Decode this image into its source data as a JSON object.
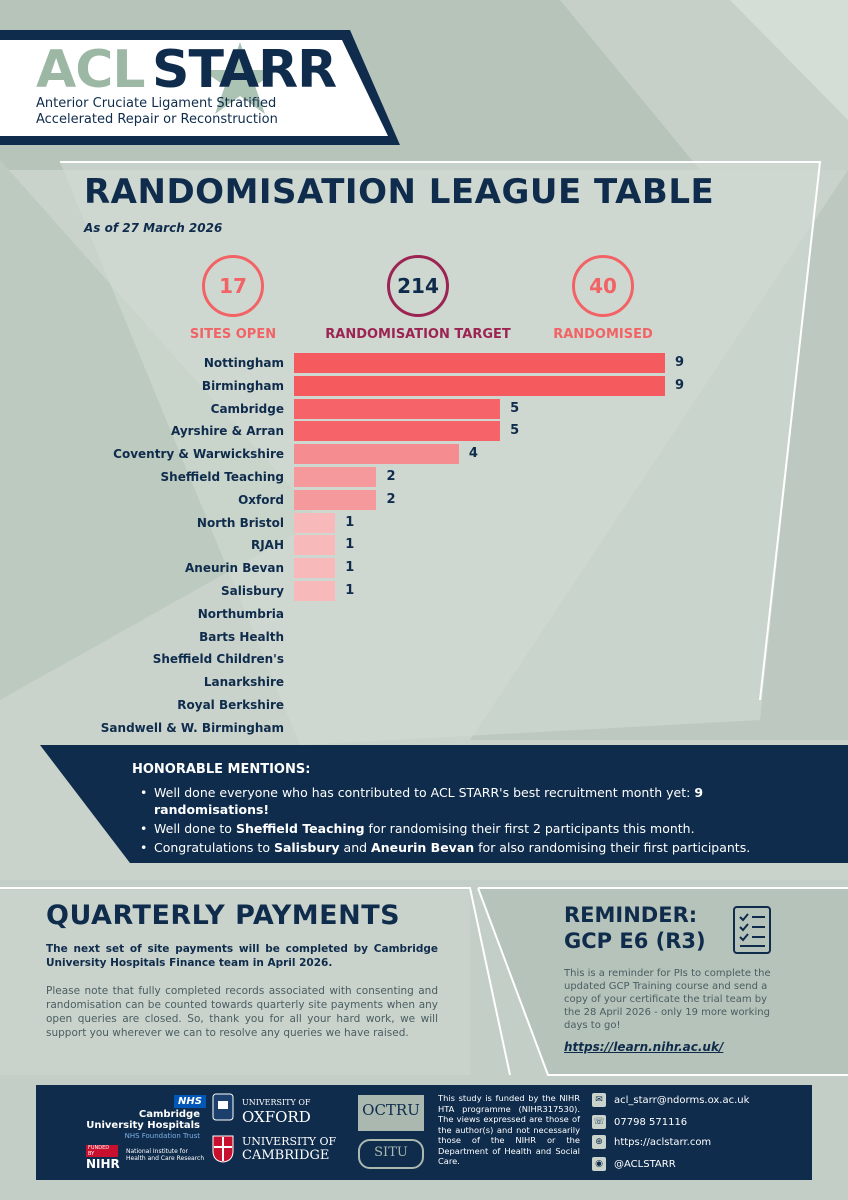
{
  "header": {
    "logo_acl": "ACL",
    "logo_starr": "STARR",
    "subtitle_line1": "Anterior Cruciate Ligament Stratified",
    "subtitle_line2": "Accelerated Repair or Reconstruction"
  },
  "title": "RANDOMISATION LEAGUE TABLE",
  "as_of": "As of 27 March 2026",
  "stats": [
    {
      "value": "17",
      "label": "SITES OPEN"
    },
    {
      "value": "214",
      "label": "RANDOMISATION TARGET"
    },
    {
      "value": "40",
      "label": "RANDOMISED"
    }
  ],
  "colors": {
    "navy": "#0f2c4c",
    "sage": "#9cb8a5",
    "coral": "#f26366",
    "magenta": "#9c2453"
  },
  "chart_data": {
    "type": "bar",
    "orientation": "horizontal",
    "categories": [
      "Nottingham",
      "Birmingham",
      "Cambridge",
      "Ayrshire & Arran",
      "Coventry & Warwickshire",
      "Sheffield Teaching",
      "Oxford",
      "North Bristol",
      "RJAH",
      "Aneurin Bevan",
      "Salisbury",
      "Northumbria",
      "Barts Health",
      "Sheffield Children's",
      "Lanarkshire",
      "Royal Berkshire",
      "Sandwell & W. Birmingham"
    ],
    "values": [
      9,
      9,
      5,
      5,
      4,
      2,
      2,
      1,
      1,
      1,
      1,
      0,
      0,
      0,
      0,
      0,
      0
    ],
    "labels": [
      "9",
      "9",
      "5",
      "5",
      "4",
      "2",
      "2",
      "1",
      "1",
      "1",
      "1",
      "",
      "",
      "",
      "",
      "",
      ""
    ],
    "bar_colors": {
      "9": "#f55a5f",
      "5": "#f6646a",
      "4": "#f58c90",
      "2": "#f6999c",
      "1": "#f8b9bb"
    },
    "xlim": [
      0,
      9
    ]
  },
  "honorable": {
    "title": "HONORABLE MENTIONS:",
    "item1_text": "Well done everyone who has contributed to ACL STARR's best recruitment month yet:",
    "item1_bold": "9 randomisations!",
    "item2_pre": "Well done to ",
    "item2_bold": "Sheffield Teaching",
    "item2_post": " for randomising their first 2 participants this month.",
    "item3_pre": "Congratulations to ",
    "item3_bold1": "Salisbury",
    "item3_mid": " and ",
    "item3_bold2": "Aneurin Bevan",
    "item3_post": " for also randomising their first participants."
  },
  "payments": {
    "title": "QUARTERLY PAYMENTS",
    "bold_text": "The next set of site payments will be completed by Cambridge University Hospitals Finance team in April 2026.",
    "body": "Please note that fully completed records associated with consenting and randomisation can be counted towards quarterly site payments when any open queries are closed. So, thank you for all your hard work, we will support you wherever we can to resolve any queries we have raised."
  },
  "reminder": {
    "title_line1": "REMINDER:",
    "title_line2": "GCP E6 (R3)",
    "icon": "checklist-icon",
    "body": "This is a reminder for PIs to complete the updated GCP Training course and send a copy of your certificate the trial team by the 28 April 2026 - only 19 more working days to go!",
    "link": "https://learn.nihr.ac.uk/"
  },
  "footer": {
    "nhs_badge": "NHS",
    "cuh_line1": "Cambridge",
    "cuh_line2": "University Hospitals",
    "cuh_line3": "NHS Foundation Trust",
    "funded_by": "FUNDED BY",
    "nihr": "NIHR",
    "nihr_sub1": "National Institute for",
    "nihr_sub2": "Health and Care Research",
    "oxford_line1": "UNIVERSITY OF",
    "oxford_line2": "OXFORD",
    "cambridge_line1": "UNIVERSITY OF",
    "cambridge_line2": "CAMBRIDGE",
    "octru": "OCTRU",
    "situ": "SITU",
    "funding_text": "This study is funded by the NIHR HTA programme (NIHR317530). The views expressed are those of the author(s) and not necessarily those of the NIHR or the Department of Health and Social Care.",
    "email": "acl_starr@ndorms.ox.ac.uk",
    "phone": "07798 571116",
    "website": "https://aclstarr.com",
    "social": "@ACLSTARR"
  }
}
